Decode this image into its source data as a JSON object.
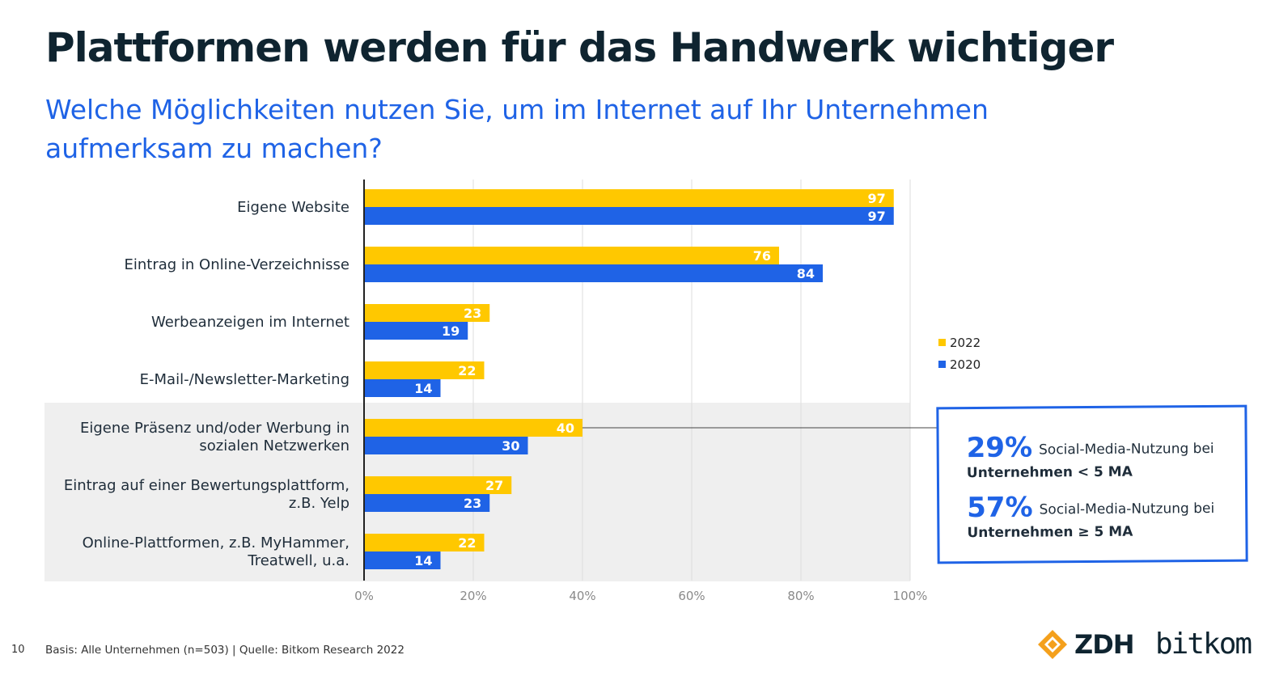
{
  "page": {
    "title": "Plattformen werden für das Handwerk wichtiger",
    "subtitle": "Welche Möglichkeiten nutzen Sie, um im Internet auf Ihr Unternehmen aufmerksam zu machen?",
    "page_number": "10",
    "source": "Basis: Alle Unternehmen (n=503) | Quelle: Bitkom Research 2022"
  },
  "legend": {
    "items": [
      {
        "label": "2022",
        "color": "#ffc800"
      },
      {
        "label": "2020",
        "color": "#1f63e6"
      }
    ]
  },
  "callout": {
    "stats": [
      {
        "pct": "29%",
        "text": "Social-Media-Nutzung bei",
        "bold": "Unternehmen < 5 MA"
      },
      {
        "pct": "57%",
        "text": "Social-Media-Nutzung bei",
        "bold": "Unternehmen ≥ 5 MA"
      }
    ],
    "border_color": "#1f63e6"
  },
  "logos": {
    "zdh": "ZDH",
    "bitkom": "bitkom",
    "zdh_color": "#f4a01c"
  },
  "chart_data": {
    "type": "bar",
    "orientation": "horizontal",
    "categories": [
      [
        "Eigene Website"
      ],
      [
        "Eintrag in Online-Verzeichnisse"
      ],
      [
        "Werbeanzeigen im Internet"
      ],
      [
        "E-Mail-/Newsletter-Marketing"
      ],
      [
        "Eigene Präsenz und/oder Werbung in",
        "sozialen Netzwerken"
      ],
      [
        "Eintrag auf einer Bewertungsplattform,",
        "z.B. Yelp"
      ],
      [
        "Online-Plattformen, z.B. MyHammer,",
        "Treatwell, u.a."
      ]
    ],
    "series": [
      {
        "name": "2022",
        "color": "#ffc800",
        "values": [
          97,
          76,
          23,
          22,
          40,
          27,
          22
        ]
      },
      {
        "name": "2020",
        "color": "#1f63e6",
        "values": [
          97,
          84,
          19,
          14,
          30,
          23,
          14
        ]
      }
    ],
    "xlim": [
      0,
      100
    ],
    "xticks": [
      "0%",
      "20%",
      "40%",
      "60%",
      "80%",
      "100%"
    ],
    "highlighted_categories": [
      4,
      5,
      6
    ],
    "grid": true
  }
}
